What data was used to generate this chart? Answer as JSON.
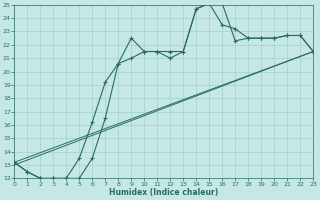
{
  "bg_color": "#c5e8e5",
  "grid_color": "#a5d0cc",
  "line_color": "#2a6b65",
  "xlabel": "Humidex (Indice chaleur)",
  "xlim": [
    0,
    23
  ],
  "ylim": [
    12,
    25
  ],
  "xtick_vals": [
    0,
    1,
    2,
    3,
    4,
    5,
    6,
    7,
    8,
    9,
    10,
    11,
    12,
    13,
    14,
    15,
    16,
    17,
    18,
    19,
    20,
    21,
    22,
    23
  ],
  "ytick_vals": [
    12,
    13,
    14,
    15,
    16,
    17,
    18,
    19,
    20,
    21,
    22,
    23,
    24,
    25
  ],
  "line1": {
    "x": [
      0,
      1,
      2,
      3,
      4,
      5,
      6,
      7,
      8,
      9,
      10,
      11,
      12,
      13,
      14,
      15,
      16,
      17,
      18,
      19,
      20,
      21,
      22,
      23
    ],
    "y": [
      13.2,
      12.5,
      12.0,
      12.0,
      12.0,
      13.5,
      16.2,
      19.2,
      20.6,
      22.5,
      21.5,
      21.5,
      21.5,
      21.5,
      24.7,
      25.1,
      25.1,
      22.3,
      22.5,
      22.5,
      22.5,
      22.7,
      22.7,
      21.5
    ]
  },
  "line2": {
    "x": [
      0,
      1,
      2,
      3,
      4,
      5,
      6,
      7,
      8,
      9,
      10,
      11,
      12,
      13,
      14,
      15,
      16,
      17,
      18,
      19,
      20,
      21,
      22,
      23
    ],
    "y": [
      13.2,
      12.5,
      12.0,
      12.0,
      12.0,
      12.0,
      13.5,
      16.5,
      20.6,
      21.0,
      21.5,
      21.5,
      21.0,
      21.5,
      24.7,
      25.1,
      23.5,
      23.2,
      22.5,
      22.5,
      22.5,
      22.7,
      22.7,
      21.5
    ]
  },
  "line3": {
    "x": [
      0,
      23
    ],
    "y": [
      13.2,
      21.5
    ]
  },
  "line4": {
    "x": [
      0,
      23
    ],
    "y": [
      13.0,
      21.5
    ]
  }
}
